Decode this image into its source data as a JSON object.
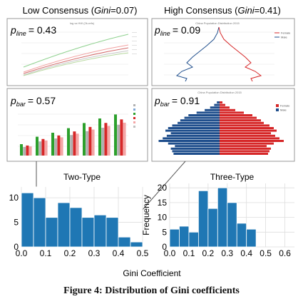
{
  "panels": {
    "left": {
      "title_prefix": "Low Consensus (",
      "title_gini": "Gini",
      "title_suffix": "=0.07)",
      "p_line_value": "= 0.43",
      "p_bar_value": "= 0.57",
      "mini_line_title": "log vs HW (2k-refs)",
      "mini_bar_title": ""
    },
    "right": {
      "title_prefix": "High Consensus (",
      "title_gini": "Gini",
      "title_suffix": "=0.41)",
      "p_line_value": "= 0.09",
      "p_bar_value": "= 0.91",
      "mini_line_title": "China Population Distribution 2015",
      "mini_bar_title": "China Population Distribution 2015",
      "legend": [
        "Female",
        "Male"
      ]
    },
    "p_symbol": "p",
    "p_line_sub": "line",
    "p_bar_sub": "bar"
  },
  "colors": {
    "histogram_bar": "#1f77b4",
    "female": "#d62728",
    "male": "#1f4e8c",
    "panel_border": "#999999"
  },
  "chart_data": [
    {
      "type": "bar",
      "title": "Two-Type",
      "xlabel": "Gini Coefficient",
      "ylabel": "",
      "bin_edges": [
        0.0,
        0.05,
        0.1,
        0.15,
        0.2,
        0.25,
        0.3,
        0.35,
        0.4,
        0.45,
        0.5
      ],
      "values": [
        11,
        10,
        6,
        9,
        8,
        6,
        6.5,
        6,
        2,
        1
      ],
      "xlim": [
        0,
        0.5
      ],
      "ylim": [
        0,
        12.2
      ],
      "xticks": [
        "0.0",
        "0.1",
        "0.2",
        "0.3",
        "0.4",
        "0.5"
      ],
      "yticks": [
        "0",
        "5",
        "10"
      ],
      "grid": true
    },
    {
      "type": "bar",
      "title": "Three-Type",
      "xlabel": "",
      "ylabel": "Frequency",
      "bin_edges": [
        0.0,
        0.05,
        0.1,
        0.15,
        0.2,
        0.25,
        0.3,
        0.35,
        0.4,
        0.45,
        0.5,
        0.55,
        0.6
      ],
      "values": [
        6,
        7,
        5,
        19,
        13,
        20,
        15,
        8,
        6,
        0,
        0,
        0
      ],
      "xlim": [
        0,
        0.65
      ],
      "ylim": [
        0,
        21.5
      ],
      "xticks": [
        "0.0",
        "0.1",
        "0.2",
        "0.3",
        "0.4",
        "0.5",
        "0.6"
      ],
      "yticks": [
        "0",
        "5",
        "10",
        "15",
        "20"
      ],
      "grid": true
    }
  ],
  "shared_xlabel": "Gini Coefficient",
  "caption": "Figure 4: Distribution of Gini coefficients"
}
